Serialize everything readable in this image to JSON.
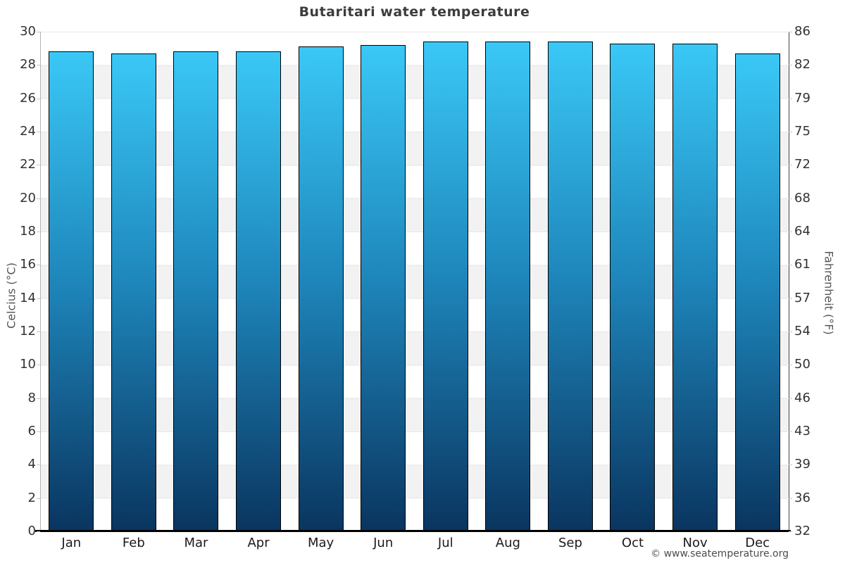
{
  "page": {
    "watermark": "© www.seatemperature.org"
  },
  "chart_data": {
    "type": "bar",
    "title": "Butaritari water temperature",
    "categories": [
      "Jan",
      "Feb",
      "Mar",
      "Apr",
      "May",
      "Jun",
      "Jul",
      "Aug",
      "Sep",
      "Oct",
      "Nov",
      "Dec"
    ],
    "values": [
      28.8,
      28.7,
      28.8,
      28.8,
      29.1,
      29.2,
      29.4,
      29.4,
      29.4,
      29.3,
      29.3,
      28.7
    ],
    "value_unit": "°C",
    "ylabel_left": "Celcius (°C)",
    "ylabel_right": "Fahrenheit (°F)",
    "ylim": [
      0,
      30
    ],
    "celsius_ticks": [
      30,
      28,
      26,
      24,
      22,
      20,
      18,
      16,
      14,
      12,
      10,
      8,
      6,
      4,
      2,
      0
    ],
    "fahrenheit_ticks": [
      86,
      82,
      79,
      75,
      72,
      68,
      64,
      61,
      57,
      54,
      50,
      46,
      43,
      39,
      36,
      32
    ],
    "legend": false,
    "grid": "alternating-horizontal-bands-every-2C",
    "colors": {
      "bar_gradient_top": "#3ac8f6",
      "bar_gradient_mid": "#1e86bb",
      "bar_gradient_bottom": "#0a3560",
      "bar_outline": "#000000",
      "band_gray": "#f2f2f2",
      "gridline": "#e6e6e6",
      "title_text": "#3c3c3c",
      "tick_text": "#333333",
      "axis_title_text": "#555555",
      "watermark_text": "#4d4d4d",
      "baseline": "#000000"
    }
  }
}
